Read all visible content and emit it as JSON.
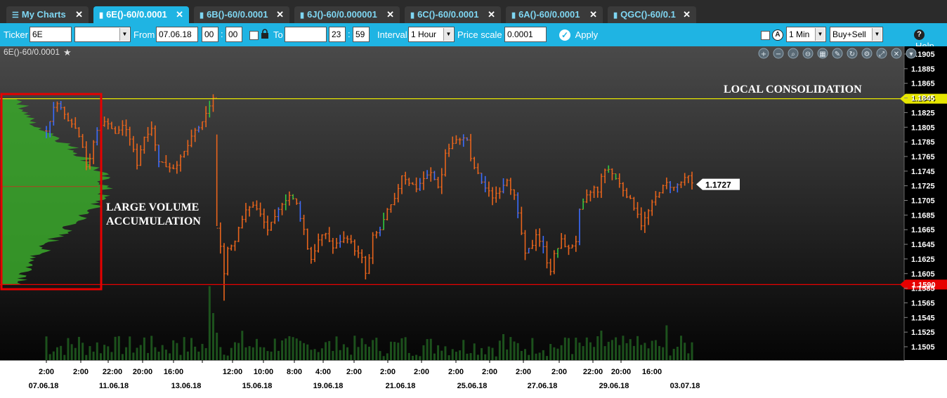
{
  "tabs": [
    {
      "label": "My Charts",
      "icon": "list-icon",
      "active": false
    },
    {
      "label": "6E()-60/0.0001",
      "icon": "bar-chart-icon",
      "active": true
    },
    {
      "label": "6B()-60/0.0001",
      "icon": "bar-chart-icon",
      "active": false
    },
    {
      "label": "6J()-60/0.000001",
      "icon": "bar-chart-icon",
      "active": false
    },
    {
      "label": "6C()-60/0.0001",
      "icon": "bar-chart-icon",
      "active": false
    },
    {
      "label": "6A()-60/0.0001",
      "icon": "bar-chart-icon",
      "active": false
    },
    {
      "label": "QGC()-60/0.1",
      "icon": "bar-chart-icon",
      "active": false
    }
  ],
  "toolbar": {
    "ticker_label": "Ticker",
    "ticker_value": "6E",
    "from_label": "From",
    "from_date": "07.06.18",
    "from_hour": "00",
    "from_minute": "00",
    "to_label": "To",
    "to_date": "",
    "to_hour": "23",
    "to_minute": "59",
    "interval_label": "Interval",
    "interval_value": "1 Hour",
    "price_scale_label": "Price scale",
    "price_scale_value": "0.0001",
    "apply_label": "Apply",
    "timeframe_value": "1 Min",
    "side_value": "Buy+Sell",
    "help_label": "Help"
  },
  "chart_data": {
    "type": "candlestick",
    "instrument": "6E()-60/0.0001",
    "yaxis": {
      "ticks": [
        "1.1905",
        "1.1885",
        "1.1865",
        "1.1845",
        "1.1825",
        "1.1805",
        "1.1785",
        "1.1765",
        "1.1745",
        "1.1725",
        "1.1705",
        "1.1685",
        "1.1665",
        "1.1645",
        "1.1625",
        "1.1605",
        "1.1585",
        "1.1565",
        "1.1545",
        "1.1525",
        "1.1505"
      ],
      "range": [
        1.149,
        1.1915
      ]
    },
    "xaxis": {
      "time_ticks": [
        "2:00",
        "2:00",
        "22:00",
        "20:00",
        "16:00",
        "12:00",
        "10:00",
        "8:00",
        "4:00",
        "2:00",
        "2:00",
        "2:00",
        "2:00",
        "2:00",
        "2:00",
        "2:00",
        "22:00",
        "20:00",
        "16:00"
      ],
      "date_ticks": [
        "07.06.18",
        "11.06.18",
        "13.06.18",
        "15.06.18",
        "19.06.18",
        "21.06.18",
        "25.06.18",
        "27.06.18",
        "29.06.18",
        "03.07.18"
      ]
    },
    "series": [
      {
        "values": [
          [
            0,
            1.18
          ],
          [
            2,
            1.183
          ],
          [
            3,
            1.184
          ],
          [
            5,
            1.1822
          ],
          [
            7,
            1.1812
          ],
          [
            9,
            1.1795
          ],
          [
            10,
            1.178
          ],
          [
            11,
            1.1752
          ],
          [
            12,
            1.176
          ],
          [
            13,
            1.1785
          ],
          [
            14,
            1.18
          ],
          [
            15,
            1.181
          ],
          [
            17,
            1.1812
          ],
          [
            19,
            1.1795
          ],
          [
            21,
            1.1808
          ],
          [
            23,
            1.179
          ],
          [
            25,
            1.1755
          ],
          [
            26,
            1.1775
          ],
          [
            27,
            1.1792
          ],
          [
            29,
            1.1805
          ],
          [
            30,
            1.178
          ],
          [
            31,
            1.176
          ],
          [
            33,
            1.1752
          ],
          [
            35,
            1.175
          ],
          [
            37,
            1.1762
          ],
          [
            39,
            1.178
          ],
          [
            41,
            1.18
          ],
          [
            43,
            1.181
          ],
          [
            44,
            1.1822
          ],
          [
            45,
            1.1835
          ],
          [
            46,
            1.1845
          ],
          [
            47,
            1.1665
          ],
          [
            48,
            1.1645
          ],
          [
            49,
            1.1605
          ],
          [
            50,
            1.164
          ],
          [
            52,
            1.165
          ],
          [
            53,
            1.167
          ],
          [
            55,
            1.169
          ],
          [
            57,
            1.17
          ],
          [
            59,
            1.1685
          ],
          [
            61,
            1.1665
          ],
          [
            63,
            1.168
          ],
          [
            65,
            1.1702
          ],
          [
            67,
            1.1712
          ],
          [
            69,
            1.17
          ],
          [
            71,
            1.1665
          ],
          [
            72,
            1.164
          ],
          [
            73,
            1.1625
          ],
          [
            75,
            1.165
          ],
          [
            77,
            1.166
          ],
          [
            79,
            1.164
          ],
          [
            81,
            1.165
          ],
          [
            83,
            1.1655
          ],
          [
            85,
            1.1638
          ],
          [
            87,
            1.1625
          ],
          [
            88,
            1.1605
          ],
          [
            89,
            1.1625
          ],
          [
            90,
            1.1655
          ],
          [
            92,
            1.1665
          ],
          [
            94,
            1.169
          ],
          [
            96,
            1.1705
          ],
          [
            98,
            1.174
          ],
          [
            100,
            1.173
          ],
          [
            102,
            1.1722
          ],
          [
            104,
            1.1735
          ],
          [
            106,
            1.1742
          ],
          [
            108,
            1.1725
          ],
          [
            109,
            1.174
          ],
          [
            110,
            1.177
          ],
          [
            112,
            1.1782
          ],
          [
            114,
            1.179
          ],
          [
            116,
            1.1788
          ],
          [
            117,
            1.176
          ],
          [
            119,
            1.174
          ],
          [
            121,
            1.1722
          ],
          [
            123,
            1.171
          ],
          [
            125,
            1.172
          ],
          [
            127,
            1.1735
          ],
          [
            129,
            1.171
          ],
          [
            130,
            1.1685
          ],
          [
            131,
            1.166
          ],
          [
            132,
            1.163
          ],
          [
            134,
            1.1645
          ],
          [
            135,
            1.166
          ],
          [
            137,
            1.164
          ],
          [
            138,
            1.1622
          ],
          [
            139,
            1.161
          ],
          [
            140,
            1.163
          ],
          [
            142,
            1.165
          ],
          [
            144,
            1.1638
          ],
          [
            146,
            1.165
          ],
          [
            147,
            1.169
          ],
          [
            149,
            1.171
          ],
          [
            151,
            1.1722
          ],
          [
            152,
            1.1715
          ],
          [
            153,
            1.174
          ],
          [
            155,
            1.1748
          ],
          [
            157,
            1.1735
          ],
          [
            159,
            1.172
          ],
          [
            161,
            1.1705
          ],
          [
            163,
            1.1688
          ],
          [
            164,
            1.1672
          ],
          [
            165,
            1.168
          ],
          [
            167,
            1.17
          ],
          [
            169,
            1.1718
          ],
          [
            171,
            1.1728
          ],
          [
            173,
            1.1722
          ],
          [
            175,
            1.173
          ],
          [
            177,
            1.1737
          ],
          [
            178,
            1.1727
          ]
        ]
      }
    ],
    "annotations": [
      {
        "text": "LOCAL CONSOLIDATION"
      },
      {
        "text": "LARGE VOLUME ACCUMULATION"
      }
    ],
    "horizontal_lines": [
      {
        "value": 1.1844,
        "color": "#e6e600",
        "label": "1.1844"
      },
      {
        "value": 1.159,
        "color": "#e60000",
        "label": "1.1590"
      }
    ],
    "last_price": {
      "value": 1.1727,
      "label": "1.1727"
    },
    "volume_profile": {
      "range": [
        1.159,
        1.1844
      ],
      "peak_price": 1.1724,
      "color": "#3aa82a"
    },
    "volume_bars": {
      "color": "#1f5a1f"
    },
    "toolbar_icons": [
      "zoom-in-icon",
      "zoom-out-icon",
      "search-icon",
      "zoom-reset-icon",
      "grid-icon",
      "pencil-icon",
      "refresh-icon",
      "gear-icon",
      "expand-icon",
      "close-icon",
      "dropdown-icon"
    ]
  }
}
